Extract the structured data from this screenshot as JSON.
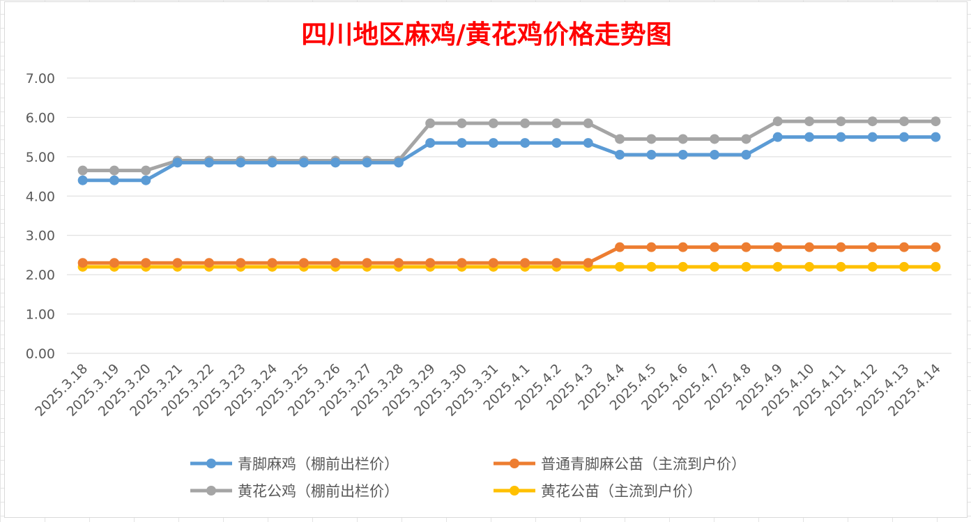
{
  "chart_data": {
    "type": "line",
    "title": "四川地区麻鸡/黄花鸡价格走势图",
    "xlabel": "",
    "ylabel": "",
    "ylim": [
      0,
      7
    ],
    "yticks": [
      "0.00",
      "1.00",
      "2.00",
      "3.00",
      "4.00",
      "5.00",
      "6.00",
      "7.00"
    ],
    "grid": "horizontal",
    "legend_position": "bottom",
    "categories": [
      "2025.3.18",
      "2025.3.19",
      "2025.3.20",
      "2025.3.21",
      "2025.3.22",
      "2025.3.23",
      "2025.3.24",
      "2025.3.25",
      "2025.3.26",
      "2025.3.27",
      "2025.3.28",
      "2025.3.29",
      "2025.3.30",
      "2025.3.31",
      "2025.4.1",
      "2025.4.2",
      "2025.4.3",
      "2025.4.4",
      "2025.4.5",
      "2025.4.6",
      "2025.4.7",
      "2025.4.8",
      "2025.4.9",
      "2025.4.10",
      "2025.4.11",
      "2025.4.12",
      "2025.4.13",
      "2025.4.14"
    ],
    "series": [
      {
        "name": "青脚麻鸡（棚前出栏价）",
        "color": "#5b9bd5",
        "values": [
          4.4,
          4.4,
          4.4,
          4.85,
          4.85,
          4.85,
          4.85,
          4.85,
          4.85,
          4.85,
          4.85,
          5.35,
          5.35,
          5.35,
          5.35,
          5.35,
          5.35,
          5.05,
          5.05,
          5.05,
          5.05,
          5.05,
          5.5,
          5.5,
          5.5,
          5.5,
          5.5,
          5.5
        ]
      },
      {
        "name": "普通青脚麻公苗（主流到户价）",
        "color": "#ed7d31",
        "values": [
          2.3,
          2.3,
          2.3,
          2.3,
          2.3,
          2.3,
          2.3,
          2.3,
          2.3,
          2.3,
          2.3,
          2.3,
          2.3,
          2.3,
          2.3,
          2.3,
          2.3,
          2.7,
          2.7,
          2.7,
          2.7,
          2.7,
          2.7,
          2.7,
          2.7,
          2.7,
          2.7,
          2.7
        ]
      },
      {
        "name": "黄花公鸡（棚前出栏价）",
        "color": "#a5a5a5",
        "values": [
          4.65,
          4.65,
          4.65,
          4.9,
          4.9,
          4.9,
          4.9,
          4.9,
          4.9,
          4.9,
          4.9,
          5.85,
          5.85,
          5.85,
          5.85,
          5.85,
          5.85,
          5.45,
          5.45,
          5.45,
          5.45,
          5.45,
          5.9,
          5.9,
          5.9,
          5.9,
          5.9,
          5.9
        ]
      },
      {
        "name": "黄花公苗（主流到户价）",
        "color": "#ffc000",
        "values": [
          2.2,
          2.2,
          2.2,
          2.2,
          2.2,
          2.2,
          2.2,
          2.2,
          2.2,
          2.2,
          2.2,
          2.2,
          2.2,
          2.2,
          2.2,
          2.2,
          2.2,
          2.2,
          2.2,
          2.2,
          2.2,
          2.2,
          2.2,
          2.2,
          2.2,
          2.2,
          2.2,
          2.2
        ]
      }
    ]
  }
}
